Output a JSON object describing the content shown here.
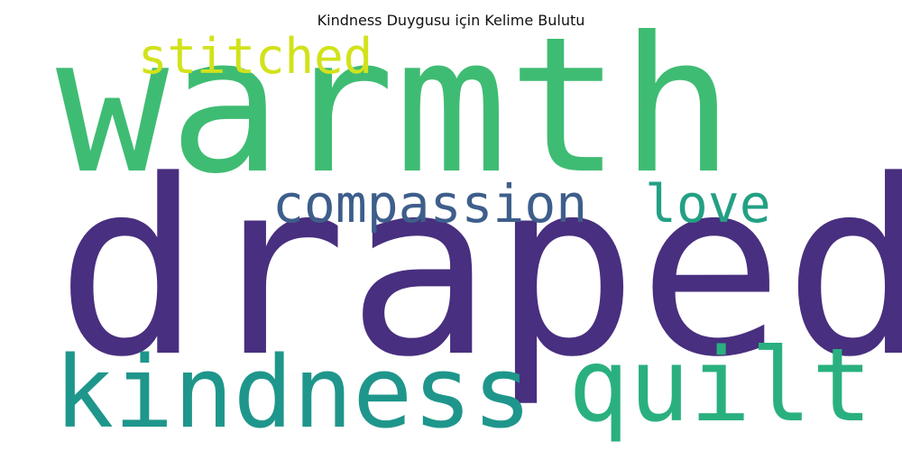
{
  "title": "Kindness Duygusu için Kelime Bulutu",
  "words": [
    {
      "key": "warmth",
      "text": "warmth",
      "color": "#3fbc73"
    },
    {
      "key": "draped",
      "text": "draped",
      "color": "#482f7f"
    },
    {
      "key": "kindness",
      "text": "kindness",
      "color": "#1f968b"
    },
    {
      "key": "quilt",
      "text": "quilt",
      "color": "#2ab07f"
    },
    {
      "key": "compassion",
      "text": "compassion",
      "color": "#3e5e8b"
    },
    {
      "key": "love",
      "text": "love",
      "color": "#23a083"
    },
    {
      "key": "stitched",
      "text": "stitched",
      "color": "#d2e21b"
    }
  ]
}
